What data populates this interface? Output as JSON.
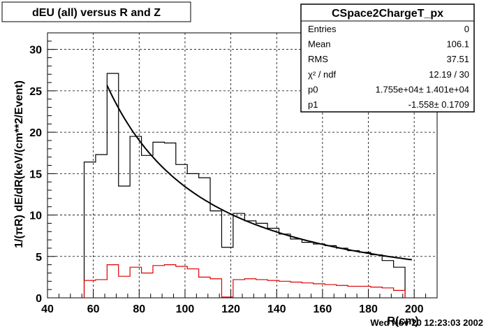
{
  "title": "dEU (all) versus R and Z",
  "stats_box": {
    "name": "CSpace2ChargeT_px",
    "rows": [
      {
        "label": "Entries",
        "value": "0"
      },
      {
        "label": "Mean",
        "value": "106.1"
      },
      {
        "label": "RMS",
        "value": "37.51"
      },
      {
        "label": "χ² / ndf",
        "value": "12.19 / 30"
      },
      {
        "label": "p0",
        "value": "1.755e+04± 1.401e+04"
      },
      {
        "label": "p1",
        "value": "-1.558± 0.1709"
      }
    ]
  },
  "timestamp": "Wed Nov 20 12:23:03 2002",
  "colors": {
    "black_hist": "#000000",
    "red_hist": "#dd0000",
    "fit": "#000000"
  },
  "chart_data": {
    "type": "line",
    "xlabel": "R(cm)",
    "ylabel": "1/(πR) dE/dR(keV/(cm**2/Event)",
    "xlim": [
      40,
      210
    ],
    "ylim": [
      0,
      32
    ],
    "xticks": [
      40,
      60,
      80,
      100,
      120,
      140,
      160,
      180,
      200
    ],
    "yticks": [
      0,
      5,
      10,
      15,
      20,
      25,
      30
    ],
    "grid": true,
    "bin_edges": [
      56,
      61,
      66,
      71,
      76,
      81,
      86,
      91,
      96,
      101,
      106,
      111,
      116,
      121,
      126,
      131,
      136,
      141,
      146,
      151,
      156,
      161,
      166,
      171,
      176,
      181,
      186,
      191,
      196
    ],
    "series": [
      {
        "values": [
          16.4,
          17.3,
          27.1,
          13.5,
          19.5,
          17.2,
          18.8,
          18.7,
          16.1,
          15.0,
          14.5,
          10.5,
          6.1,
          10.2,
          9.3,
          9.0,
          8.4,
          7.7,
          7.1,
          6.7,
          6.5,
          6.3,
          6.0,
          5.7,
          5.5,
          5.2,
          4.5,
          3.7
        ]
      },
      {
        "values": [
          2.1,
          2.2,
          4.0,
          2.6,
          3.7,
          3.0,
          3.9,
          4.0,
          3.8,
          3.5,
          2.5,
          2.3,
          0.1,
          2.2,
          2.3,
          2.2,
          2.1,
          2.0,
          1.9,
          1.8,
          1.7,
          1.6,
          1.5,
          1.4,
          1.4,
          1.3,
          1.2,
          0.9
        ]
      }
    ],
    "fit": {
      "function": "p0 * x^p1",
      "p0": 17550,
      "p1": -1.558,
      "x_range": [
        66,
        199
      ]
    }
  }
}
